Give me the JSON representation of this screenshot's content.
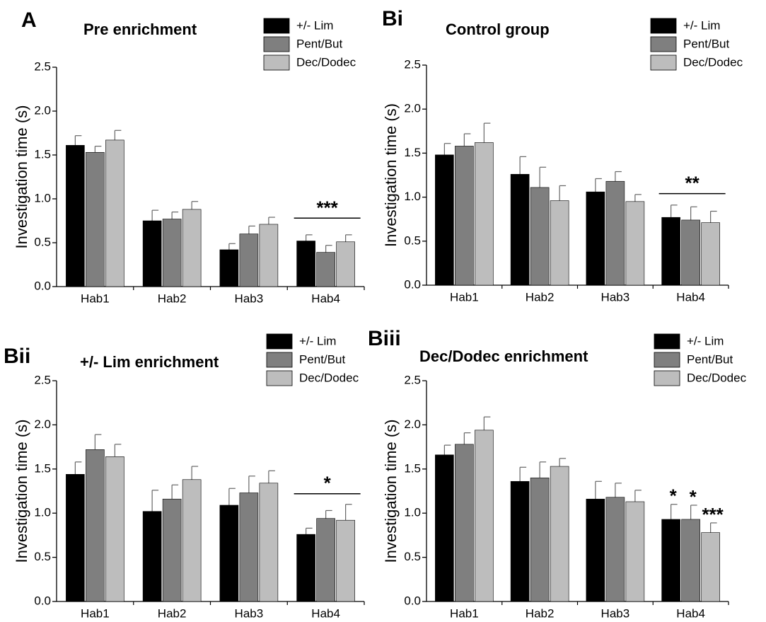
{
  "legend_entries": [
    "+/- Lim",
    "Pent/But",
    "Dec/Dodec"
  ],
  "colors": {
    "+/- Lim": "#000000",
    "Pent/But": "#7f7f7f",
    "Dec/Dodec": "#bdbdbd"
  },
  "chart_data": [
    {
      "panel": "A",
      "type": "bar",
      "title": "Pre enrichment",
      "ylabel": "Investigation time (s)",
      "xlabel": "",
      "ylim": [
        0,
        2.5
      ],
      "yticks": [
        "0.0",
        "0.5",
        "1.0",
        "1.5",
        "2.0",
        "2.5"
      ],
      "categories": [
        "Hab1",
        "Hab2",
        "Hab3",
        "Hab4"
      ],
      "legend_position": "top-right",
      "series": [
        {
          "name": "+/- Lim",
          "values": [
            1.61,
            0.75,
            0.42,
            0.52
          ],
          "errors": [
            0.11,
            0.12,
            0.07,
            0.07
          ]
        },
        {
          "name": "Pent/But",
          "values": [
            1.53,
            0.77,
            0.6,
            0.39
          ],
          "errors": [
            0.07,
            0.08,
            0.09,
            0.08
          ]
        },
        {
          "name": "Dec/Dodec",
          "values": [
            1.67,
            0.88,
            0.71,
            0.51
          ],
          "errors": [
            0.11,
            0.09,
            0.08,
            0.08
          ]
        }
      ],
      "annotations": [
        {
          "text": "***",
          "category": "Hab4",
          "type": "bracket",
          "y": 0.78
        }
      ]
    },
    {
      "panel": "Bi",
      "type": "bar",
      "title": "Control group",
      "ylabel": "Investigation time (s)",
      "xlabel": "",
      "ylim": [
        0,
        2.5
      ],
      "yticks": [
        "0.0",
        "0.5",
        "1.0",
        "1.5",
        "2.0",
        "2.5"
      ],
      "categories": [
        "Hab1",
        "Hab2",
        "Hab3",
        "Hab4"
      ],
      "legend_position": "top-right",
      "series": [
        {
          "name": "+/- Lim",
          "values": [
            1.48,
            1.26,
            1.06,
            0.77
          ],
          "errors": [
            0.13,
            0.2,
            0.15,
            0.14
          ]
        },
        {
          "name": "Pent/But",
          "values": [
            1.58,
            1.11,
            1.18,
            0.74
          ],
          "errors": [
            0.14,
            0.23,
            0.11,
            0.15
          ]
        },
        {
          "name": "Dec/Dodec",
          "values": [
            1.62,
            0.96,
            0.95,
            0.71
          ],
          "errors": [
            0.22,
            0.17,
            0.08,
            0.13
          ]
        }
      ],
      "annotations": [
        {
          "text": "**",
          "category": "Hab4",
          "type": "bracket",
          "y": 1.04
        }
      ]
    },
    {
      "panel": "Bii",
      "type": "bar",
      "title": "+/- Lim enrichment",
      "ylabel": "Investigation time (s)",
      "xlabel": "",
      "ylim": [
        0,
        2.5
      ],
      "yticks": [
        "0.0",
        "0.5",
        "1.0",
        "1.5",
        "2.0",
        "2.5"
      ],
      "categories": [
        "Hab1",
        "Hab2",
        "Hab3",
        "Hab4"
      ],
      "legend_position": "top-right",
      "series": [
        {
          "name": "+/- Lim",
          "values": [
            1.44,
            1.02,
            1.09,
            0.76
          ],
          "errors": [
            0.14,
            0.24,
            0.19,
            0.07
          ]
        },
        {
          "name": "Pent/But",
          "values": [
            1.72,
            1.16,
            1.23,
            0.94
          ],
          "errors": [
            0.17,
            0.16,
            0.19,
            0.09
          ]
        },
        {
          "name": "Dec/Dodec",
          "values": [
            1.64,
            1.38,
            1.34,
            0.92
          ],
          "errors": [
            0.14,
            0.15,
            0.14,
            0.18
          ]
        }
      ],
      "annotations": [
        {
          "text": "*",
          "category": "Hab4",
          "type": "bracket",
          "y": 1.22
        }
      ]
    },
    {
      "panel": "Biii",
      "type": "bar",
      "title": "Dec/Dodec enrichment",
      "ylabel": "Investigation time (s)",
      "xlabel": "",
      "ylim": [
        0,
        2.5
      ],
      "yticks": [
        "0.0",
        "0.5",
        "1.0",
        "1.5",
        "2.0",
        "2.5"
      ],
      "categories": [
        "Hab1",
        "Hab2",
        "Hab3",
        "Hab4"
      ],
      "legend_position": "top-right",
      "series": [
        {
          "name": "+/- Lim",
          "values": [
            1.66,
            1.36,
            1.16,
            0.93
          ],
          "errors": [
            0.11,
            0.16,
            0.2,
            0.17
          ]
        },
        {
          "name": "Pent/But",
          "values": [
            1.78,
            1.4,
            1.18,
            0.93
          ],
          "errors": [
            0.13,
            0.18,
            0.16,
            0.16
          ]
        },
        {
          "name": "Dec/Dodec",
          "values": [
            1.94,
            1.53,
            1.13,
            0.78
          ],
          "errors": [
            0.15,
            0.09,
            0.13,
            0.11
          ]
        }
      ],
      "annotations": [
        {
          "text": "*",
          "category": "Hab4",
          "series": "+/- Lim",
          "type": "above-bar"
        },
        {
          "text": "*",
          "category": "Hab4",
          "series": "Pent/But",
          "type": "above-bar"
        },
        {
          "text": "***",
          "category": "Hab4",
          "series": "Dec/Dodec",
          "type": "above-bar"
        }
      ]
    }
  ]
}
